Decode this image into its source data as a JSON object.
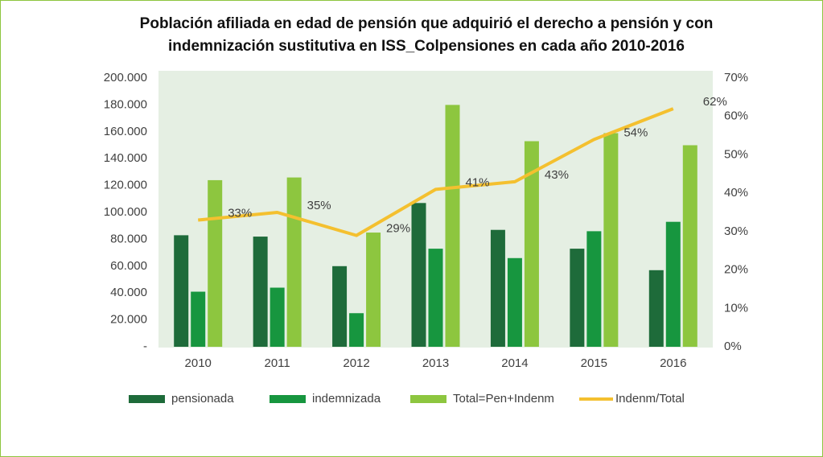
{
  "chart_data": {
    "type": "bar_line",
    "title": [
      "Población afiliada en edad de pensión que adquirió el derecho a pensión y con",
      "indemnización sustitutiva en ISS_Colpensiones en cada año 2010-2016"
    ],
    "categories": [
      "2010",
      "2011",
      "2012",
      "2013",
      "2014",
      "2015",
      "2016"
    ],
    "series": [
      {
        "name": "pensionada",
        "color": "#1e6b3a",
        "values": [
          83000,
          82000,
          60000,
          107000,
          87000,
          73000,
          57000
        ]
      },
      {
        "name": "indemnizada",
        "color": "#17963f",
        "values": [
          41000,
          44000,
          25000,
          73000,
          66000,
          86000,
          93000
        ]
      },
      {
        "name": "Total=Pen+Indenm",
        "color": "#8dc63f",
        "values": [
          124000,
          126000,
          85000,
          180000,
          153000,
          159000,
          150000
        ]
      },
      {
        "name": "Indenm/Total",
        "color": "#f4c02f",
        "axis": "y2",
        "values": [
          33,
          35,
          29,
          41,
          43,
          54,
          62
        ],
        "value_labels": [
          "33%",
          "35%",
          "29%",
          "41%",
          "43%",
          "54%",
          "62%"
        ]
      }
    ],
    "ylim": [
      0,
      200000
    ],
    "yticks": [
      {
        "value": 0,
        "label": "-"
      },
      {
        "value": 20000,
        "label": "20.000"
      },
      {
        "value": 40000,
        "label": "40.000"
      },
      {
        "value": 60000,
        "label": "60.000"
      },
      {
        "value": 80000,
        "label": "80.000"
      },
      {
        "value": 100000,
        "label": "100.000"
      },
      {
        "value": 120000,
        "label": "120.000"
      },
      {
        "value": 140000,
        "label": "140.000"
      },
      {
        "value": 160000,
        "label": "160.000"
      },
      {
        "value": 180000,
        "label": "180.000"
      },
      {
        "value": 200000,
        "label": "200.000"
      }
    ],
    "y2lim": [
      0,
      70
    ],
    "y2ticks": [
      {
        "value": 0,
        "label": "0%"
      },
      {
        "value": 10,
        "label": "10%"
      },
      {
        "value": 20,
        "label": "20%"
      },
      {
        "value": 30,
        "label": "30%"
      },
      {
        "value": 40,
        "label": "40%"
      },
      {
        "value": 50,
        "label": "50%"
      },
      {
        "value": 60,
        "label": "60%"
      },
      {
        "value": 70,
        "label": "70%"
      }
    ],
    "legend": "bottom"
  }
}
